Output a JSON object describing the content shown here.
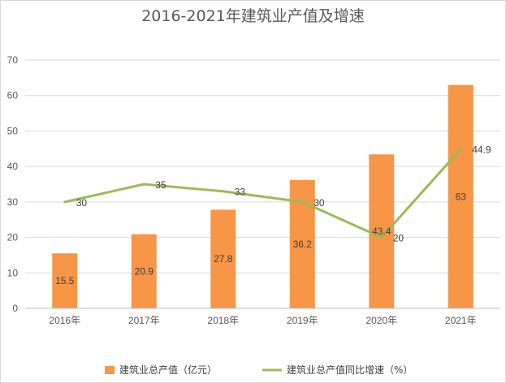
{
  "chart_data": {
    "type": "bar",
    "title": "2016-2021年建筑业产值及增速",
    "categories": [
      "2016年",
      "2017年",
      "2018年",
      "2019年",
      "2020年",
      "2021年"
    ],
    "series": [
      {
        "name": "建筑业总产值（亿元）",
        "type": "bar",
        "values": [
          15.5,
          20.9,
          27.8,
          36.2,
          43.4,
          63
        ],
        "color": "#f79646"
      },
      {
        "name": "建筑业总产值同比增速（%）",
        "type": "line",
        "values": [
          30,
          35,
          33,
          30,
          20,
          44.9
        ],
        "color": "#9bbb59"
      }
    ],
    "ylim": [
      0,
      70
    ],
    "yticks": [
      0,
      10,
      20,
      30,
      40,
      50,
      60,
      70
    ],
    "grid": true,
    "legend_position": "bottom"
  }
}
